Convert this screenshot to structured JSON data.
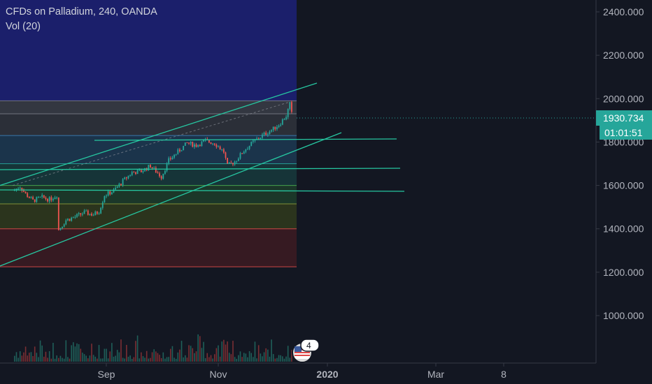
{
  "header": {
    "symbol_line": "CFDs on Palladium, 240, OANDA",
    "volume_indicator": "Vol (20)"
  },
  "price_axis": {
    "ticks": [
      "2400.000",
      "2200.000",
      "2000.000",
      "1800.000",
      "1600.000",
      "1400.000",
      "1200.000",
      "1000.000"
    ],
    "last_price": "1930.734",
    "countdown": "01:01:51"
  },
  "time_axis": {
    "ticks": [
      "Sep",
      "Nov",
      "2020",
      "Mar",
      "8"
    ]
  },
  "events": {
    "badge_count": "4",
    "flag_icon": "us-flag-icon"
  },
  "colors": {
    "background": "#131722",
    "up": "#26a69a",
    "down": "#ef5350",
    "trendline": "#26c6a0",
    "price_label": "#26a69a"
  },
  "chart_data": {
    "type": "candlestick",
    "title": "CFDs on Palladium, 240, OANDA",
    "ylim": [
      820,
      2470
    ],
    "x_range": [
      "2019-07-12",
      "2020-03-15"
    ],
    "last_price": 1930.734,
    "close_path": [
      [
        "2019-07-12",
        1575
      ],
      [
        "2019-07-16",
        1595
      ],
      [
        "2019-07-19",
        1560
      ],
      [
        "2019-07-23",
        1530
      ],
      [
        "2019-07-28",
        1545
      ],
      [
        "2019-08-01",
        1535
      ],
      [
        "2019-08-05",
        1555
      ],
      [
        "2019-08-06",
        1395
      ],
      [
        "2019-08-10",
        1440
      ],
      [
        "2019-08-15",
        1455
      ],
      [
        "2019-08-20",
        1475
      ],
      [
        "2019-08-25",
        1465
      ],
      [
        "2019-08-28",
        1480
      ],
      [
        "2019-08-31",
        1555
      ],
      [
        "2019-09-05",
        1575
      ],
      [
        "2019-09-10",
        1620
      ],
      [
        "2019-09-15",
        1660
      ],
      [
        "2019-09-20",
        1665
      ],
      [
        "2019-09-25",
        1690
      ],
      [
        "2019-10-01",
        1640
      ],
      [
        "2019-10-05",
        1715
      ],
      [
        "2019-10-10",
        1755
      ],
      [
        "2019-10-15",
        1795
      ],
      [
        "2019-10-20",
        1785
      ],
      [
        "2019-10-25",
        1805
      ],
      [
        "2019-10-30",
        1795
      ],
      [
        "2019-11-04",
        1755
      ],
      [
        "2019-11-06",
        1690
      ],
      [
        "2019-11-10",
        1710
      ],
      [
        "2019-11-15",
        1760
      ],
      [
        "2019-11-20",
        1800
      ],
      [
        "2019-11-25",
        1830
      ],
      [
        "2019-11-30",
        1855
      ],
      [
        "2019-12-04",
        1880
      ],
      [
        "2019-12-08",
        1920
      ],
      [
        "2019-12-10",
        1975
      ],
      [
        "2019-12-11",
        1930.734
      ]
    ],
    "volume_max_approx": 1.0,
    "drawings": {
      "fibonacci_levels": [
        1990,
        1930,
        1830,
        1700,
        1600,
        1515,
        1400,
        1225
      ],
      "channel": {
        "upper": [
          [
            "2019-07-12",
            1610
          ],
          [
            "2020-01-01",
            2085
          ]
        ],
        "lower": [
          [
            "2019-07-12",
            1270
          ],
          [
            "2020-01-04",
            1870
          ]
        ]
      },
      "horizontal_lines": [
        [
          [
            "2019-08-22",
            1830
          ],
          [
            "2020-02-08",
            1835
          ]
        ],
        [
          [
            "2019-07-12",
            1695
          ],
          [
            "2020-02-10",
            1702
          ]
        ],
        [
          [
            "2019-07-12",
            1610
          ],
          [
            "2020-02-13",
            1600
          ]
        ]
      ]
    }
  }
}
